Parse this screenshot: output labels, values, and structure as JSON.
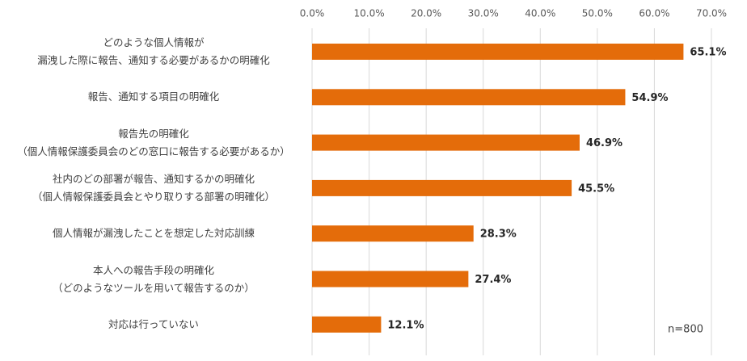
{
  "chart_data": {
    "type": "bar",
    "orientation": "horizontal",
    "categories": [
      "どのような個人情報が\n漏洩した際に報告、通知する必要があるかの明確化",
      "報告、通知する項目の明確化",
      "報告先の明確化\n（個人情報保護委員会のどの窓口に報告する必要があるか）",
      "社内のどの部署が報告、通知するかの明確化\n（個人情報保護委員会とやり取りする部署の明確化）",
      "個人情報が漏洩したことを想定した対応訓練",
      "本人への報告手段の明確化\n（どのようなツールを用いて報告するのか）",
      "対応は行っていない"
    ],
    "values": [
      65.1,
      54.9,
      46.9,
      45.5,
      28.3,
      27.4,
      12.1
    ],
    "value_labels": [
      "65.1%",
      "54.9%",
      "46.9%",
      "45.5%",
      "28.3%",
      "27.4%",
      "12.1%"
    ],
    "color": "#e46c0a",
    "xlim": [
      0,
      70
    ],
    "xticks": [
      {
        "value": 0,
        "label": "0.0%"
      },
      {
        "value": 10,
        "label": "10.0%"
      },
      {
        "value": 20,
        "label": "20.0%"
      },
      {
        "value": 30,
        "label": "30.0%"
      },
      {
        "value": 40,
        "label": "40.0%"
      },
      {
        "value": 50,
        "label": "50.0%"
      },
      {
        "value": 60,
        "label": "60.0%"
      },
      {
        "value": 70,
        "label": "70.0%"
      }
    ],
    "grid": true,
    "annotation": "n=800"
  }
}
